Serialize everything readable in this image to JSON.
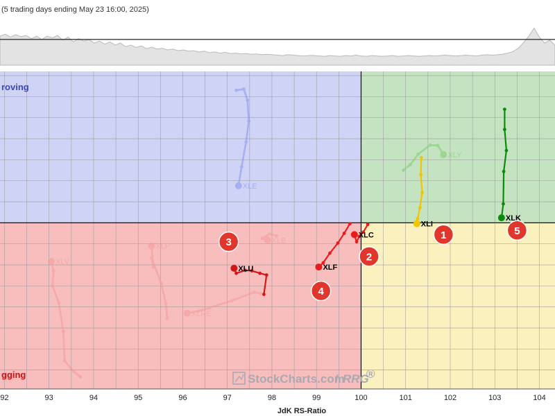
{
  "header": {
    "subtitle": "(5 trading days ending May 23 16:00, 2025)"
  },
  "quadrants": {
    "improving": "roving",
    "lagging": "gging"
  },
  "watermark": {
    "brand": "StockCharts.com",
    "product": "RRG",
    "reg": "®"
  },
  "colors": {
    "improving": "#cfd3f5",
    "leading": "#c4e3c1",
    "weakening": "#fbf1bf",
    "lagging": "#f8bdbd",
    "improving_text": "#3b46c2",
    "lagging_text": "#d01010",
    "badge": "#e0362c"
  },
  "chart_data": {
    "type": "scatter",
    "xlabel": "JdK RS-Ratio",
    "ylabel": "",
    "xlim": [
      91.9,
      104.35
    ],
    "ylim": [
      96.05,
      103.6
    ],
    "center": [
      100,
      100
    ],
    "x_ticks": [
      92,
      93,
      94,
      95,
      96,
      97,
      98,
      99,
      100,
      101,
      102,
      103,
      104
    ],
    "grid": true,
    "benchmark_line": {
      "points": [
        0.72,
        0.77,
        0.7,
        0.76,
        0.71,
        0.74,
        0.66,
        0.72,
        0.64,
        0.72,
        0.68,
        0.74,
        0.62,
        0.7,
        0.58,
        0.66,
        0.6,
        0.64,
        0.55,
        0.6,
        0.52,
        0.58,
        0.5,
        0.55,
        0.46,
        0.5,
        0.44,
        0.48,
        0.41,
        0.45,
        0.4,
        0.42,
        0.38,
        0.4,
        0.36,
        0.38,
        0.35,
        0.36,
        0.33,
        0.35,
        0.31,
        0.33,
        0.3,
        0.32,
        0.29,
        0.3,
        0.28,
        0.29,
        0.27,
        0.28,
        0.26,
        0.27,
        0.26,
        0.25,
        0.24,
        0.26,
        0.25,
        0.24,
        0.23,
        0.24,
        0.24,
        0.23,
        0.22,
        0.24,
        0.23,
        0.22,
        0.24,
        0.23,
        0.25,
        0.23,
        0.22,
        0.24,
        0.23,
        0.22,
        0.23,
        0.24,
        0.22,
        0.23,
        0.24,
        0.23,
        0.22,
        0.23,
        0.24,
        0.23,
        0.24,
        0.25,
        0.24,
        0.23,
        0.24,
        0.25,
        0.24,
        0.23,
        0.25,
        0.26,
        0.25,
        0.26,
        0.27,
        0.3,
        0.34,
        0.42,
        0.56,
        0.72,
        0.92,
        0.7,
        0.55,
        0.62,
        0.5
      ],
      "level": 0.64
    },
    "series": [
      {
        "name": "XLK",
        "color": "#0b8a0b",
        "faded": false,
        "label_side": "right",
        "points": [
          [
            103.22,
            102.7
          ],
          [
            103.22,
            102.22
          ],
          [
            103.26,
            101.72
          ],
          [
            103.2,
            101.22
          ],
          [
            103.19,
            100.45
          ],
          [
            103.15,
            100.12
          ]
        ]
      },
      {
        "name": "XLI",
        "color": "#f2c500",
        "faded": false,
        "label_side": "right",
        "points": [
          [
            101.35,
            101.55
          ],
          [
            101.34,
            101.15
          ],
          [
            101.37,
            100.72
          ],
          [
            101.32,
            100.36
          ],
          [
            101.27,
            100.1
          ],
          [
            101.25,
            99.98
          ]
        ]
      },
      {
        "name": "XLC",
        "color": "#e81c1c",
        "faded": false,
        "label_side": "right",
        "points": [
          [
            100.15,
            99.96
          ],
          [
            100.05,
            99.78
          ],
          [
            99.96,
            99.68
          ],
          [
            99.9,
            99.55
          ],
          [
            99.85,
            99.72
          ]
        ]
      },
      {
        "name": "XLF",
        "color": "#e81c1c",
        "faded": false,
        "label_side": "right",
        "points": [
          [
            99.75,
            99.98
          ],
          [
            99.62,
            99.75
          ],
          [
            99.48,
            99.52
          ],
          [
            99.3,
            99.28
          ],
          [
            99.15,
            99.05
          ],
          [
            99.05,
            98.95
          ]
        ]
      },
      {
        "name": "XLU",
        "color": "#d61515",
        "faded": false,
        "label_side": "right",
        "points": [
          [
            97.82,
            98.3
          ],
          [
            97.88,
            98.76
          ],
          [
            97.73,
            98.8
          ],
          [
            97.55,
            98.86
          ],
          [
            97.4,
            98.87
          ],
          [
            97.2,
            98.8
          ],
          [
            97.15,
            98.92
          ]
        ]
      },
      {
        "name": "XLY",
        "color": "#7ccd6c",
        "faded": true,
        "label_side": "right",
        "points": [
          [
            100.95,
            101.25
          ],
          [
            101.1,
            101.38
          ],
          [
            101.28,
            101.63
          ],
          [
            101.55,
            101.85
          ],
          [
            101.72,
            101.84
          ],
          [
            101.85,
            101.62
          ]
        ]
      },
      {
        "name": "XLE",
        "color": "#8893f2",
        "faded": true,
        "label_side": "right",
        "points": [
          [
            97.2,
            103.15
          ],
          [
            97.37,
            103.18
          ],
          [
            97.45,
            102.92
          ],
          [
            97.48,
            102.42
          ],
          [
            97.42,
            101.92
          ],
          [
            97.32,
            101.33
          ],
          [
            97.25,
            100.88
          ]
        ]
      },
      {
        "name": "XLB",
        "color": "#f39a9a",
        "faded": true,
        "label_side": "right",
        "points": [
          [
            98.1,
            99.69
          ],
          [
            97.95,
            99.74
          ],
          [
            97.78,
            99.63
          ],
          [
            97.9,
            99.59
          ]
        ]
      },
      {
        "name": "XLP",
        "color": "#f39a9a",
        "faded": true,
        "label_side": "right",
        "points": [
          [
            95.65,
            97.73
          ],
          [
            95.62,
            98.08
          ],
          [
            95.52,
            98.55
          ],
          [
            95.3,
            99.16
          ],
          [
            95.34,
            98.95
          ],
          [
            95.3,
            99.45
          ]
        ]
      },
      {
        "name": "XLV",
        "color": "#f39a9a",
        "faded": true,
        "label_side": "right",
        "points": [
          [
            93.7,
            96.34
          ],
          [
            93.55,
            96.47
          ],
          [
            93.35,
            96.72
          ],
          [
            93.32,
            97.42
          ],
          [
            93.22,
            98.1
          ],
          [
            93.08,
            98.5
          ],
          [
            93.1,
            98.86
          ],
          [
            93.05,
            99.08
          ]
        ]
      },
      {
        "name": "XLRE",
        "color": "#f39a9a",
        "faded": true,
        "label_side": "right",
        "points": [
          [
            97.75,
            98.32
          ],
          [
            97.6,
            98.35
          ],
          [
            97.1,
            98.15
          ],
          [
            96.6,
            97.98
          ],
          [
            96.35,
            97.9
          ],
          [
            96.1,
            97.85
          ]
        ]
      }
    ],
    "annotations": [
      {
        "text": "1",
        "x": 101.85,
        "y": 99.72
      },
      {
        "text": "2",
        "x": 100.18,
        "y": 99.2
      },
      {
        "text": "3",
        "x": 97.03,
        "y": 99.55
      },
      {
        "text": "4",
        "x": 99.1,
        "y": 98.38
      },
      {
        "text": "5",
        "x": 103.5,
        "y": 99.82
      }
    ]
  }
}
